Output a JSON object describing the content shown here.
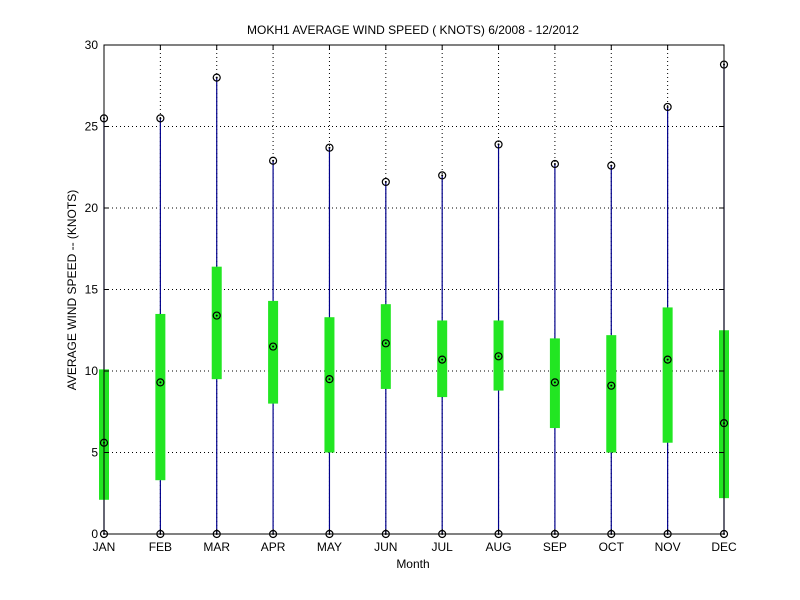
{
  "chart_data": {
    "type": "boxplot",
    "title": "MOKH1  AVERAGE WIND SPEED ( KNOTS) 6/2008 - 12/2012",
    "xlabel": "Month",
    "ylabel": "AVERAGE WIND SPEED -- (KNOTS)",
    "ylim": [
      0,
      30
    ],
    "yticks": [
      0,
      5,
      10,
      15,
      20,
      25,
      30
    ],
    "grid": true,
    "categories": [
      "JAN",
      "FEB",
      "MAR",
      "APR",
      "MAY",
      "JUN",
      "JUL",
      "AUG",
      "SEP",
      "OCT",
      "NOV",
      "DEC"
    ],
    "series": [
      {
        "min": [
          0,
          0,
          0,
          0,
          0,
          0,
          0,
          0,
          0,
          0,
          0,
          0
        ],
        "q1": [
          2.1,
          3.3,
          9.5,
          8.0,
          5.0,
          8.9,
          8.4,
          8.8,
          6.5,
          5.0,
          5.6,
          2.2
        ],
        "median": [
          5.6,
          9.3,
          13.4,
          11.5,
          9.5,
          11.7,
          10.7,
          10.9,
          9.3,
          9.1,
          10.7,
          6.8
        ],
        "q3": [
          10.1,
          13.5,
          16.4,
          14.3,
          13.3,
          14.1,
          13.1,
          13.1,
          12.0,
          12.2,
          13.9,
          12.5
        ],
        "max": [
          25.5,
          25.5,
          28.0,
          22.9,
          23.7,
          21.6,
          22.0,
          23.9,
          22.7,
          22.6,
          26.2,
          28.8
        ]
      }
    ],
    "colors": {
      "whisker": "#00008b",
      "box": "#22e622",
      "marker": "#000000",
      "grid": "#000000"
    }
  }
}
